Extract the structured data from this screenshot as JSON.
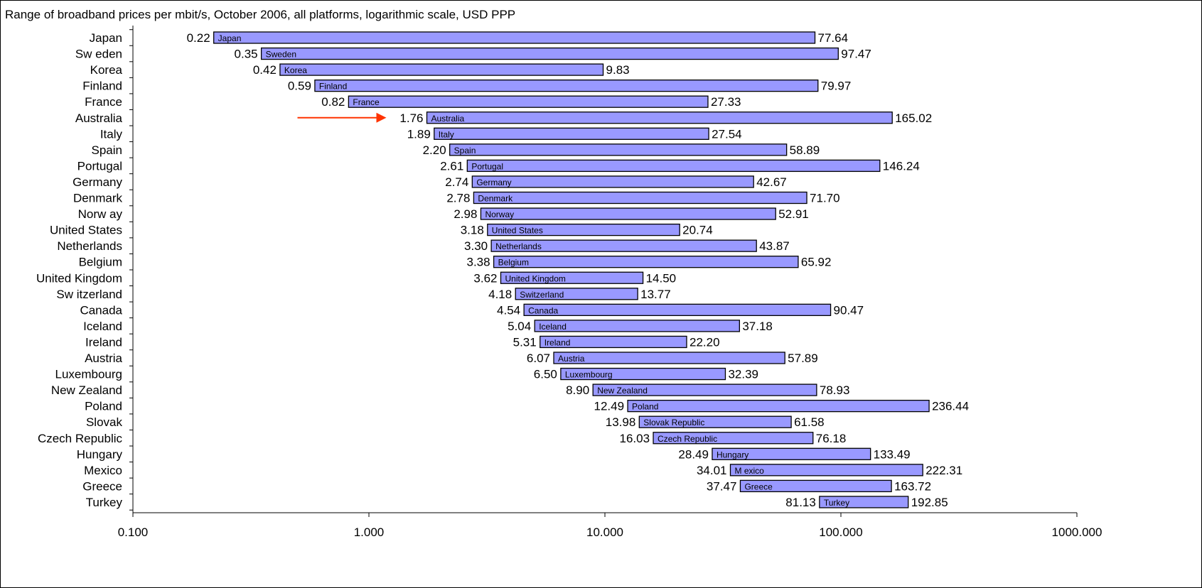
{
  "chart_data": {
    "type": "bar",
    "orientation": "horizontal-range",
    "title": "Range of broadband prices per mbit/s, October 2006, all platforms, logarithmic scale, USD PPP",
    "xscale": "log",
    "xlim": [
      0.1,
      1000
    ],
    "x_ticks": [
      "0.100",
      "1.000",
      "10.000",
      "100.000",
      "1000.000"
    ],
    "categories": [
      "Japan",
      "Sw eden",
      "Korea",
      "Finland",
      "France",
      "Australia",
      "Italy",
      "Spain",
      "Portugal",
      "Germany",
      "Denmark",
      "Norw ay",
      "United States",
      "Netherlands",
      "Belgium",
      "United Kingdom",
      "Sw itzerland",
      "Canada",
      "Iceland",
      "Ireland",
      "Austria",
      "Luxembourg",
      "New Zealand",
      "Poland",
      "Slovak",
      "Czech Republic",
      "Hungary",
      "Mexico",
      "Greece",
      "Turkey"
    ],
    "bar_labels": [
      "Japan",
      "Sweden",
      "Korea",
      "Finland",
      "France",
      "Australia",
      "Italy",
      "Spain",
      "Portugal",
      "Germany",
      "Denmark",
      "Norway",
      "United States",
      "Netherlands",
      "Belgium",
      "United Kingdom",
      "Switzerland",
      "Canada",
      "Iceland",
      "Ireland",
      "Austria",
      "Luxembourg",
      "New Zealand",
      "Poland",
      "Slovak Republic",
      "Czech Republic",
      "Hungary",
      "M exico",
      "Greece",
      "Turkey"
    ],
    "min_labels": [
      "0.22",
      "0.35",
      "0.42",
      "0.59",
      "0.82",
      "1.76",
      "1.89",
      "2.20",
      "2.61",
      "2.74",
      "2.78",
      "2.98",
      "3.18",
      "3.30",
      "3.38",
      "3.62",
      "4.18",
      "4.54",
      "5.04",
      "5.31",
      "6.07",
      "6.50",
      "8.90",
      "12.49",
      "13.98",
      "16.03",
      "28.49",
      "34.01",
      "37.47",
      "81.13"
    ],
    "max_labels": [
      "77.64",
      "97.47",
      "9.83",
      "79.97",
      "27.33",
      "165.02",
      "27.54",
      "58.89",
      "146.24",
      "42.67",
      "71.70",
      "52.91",
      "20.74",
      "43.87",
      "65.92",
      "14.50",
      "13.77",
      "90.47",
      "37.18",
      "22.20",
      "57.89",
      "32.39",
      "78.93",
      "236.44",
      "61.58",
      "76.18",
      "133.49",
      "222.31",
      "163.72",
      "192.85"
    ],
    "min_values": [
      0.22,
      0.35,
      0.42,
      0.59,
      0.82,
      1.76,
      1.89,
      2.2,
      2.61,
      2.74,
      2.78,
      2.98,
      3.18,
      3.3,
      3.38,
      3.62,
      4.18,
      4.54,
      5.04,
      5.31,
      6.07,
      6.5,
      8.9,
      12.49,
      13.98,
      16.03,
      28.49,
      34.01,
      37.47,
      81.13
    ],
    "max_values": [
      77.64,
      97.47,
      9.83,
      79.97,
      27.33,
      165.02,
      27.54,
      58.89,
      146.24,
      42.67,
      71.7,
      52.91,
      20.74,
      43.87,
      65.92,
      14.5,
      13.77,
      90.47,
      37.18,
      22.2,
      57.89,
      32.39,
      78.93,
      236.44,
      61.58,
      76.18,
      133.49,
      222.31,
      163.72,
      192.85
    ],
    "highlight_category": "Australia",
    "grid": false,
    "legend": "none",
    "colors": {
      "bar_fill": "#9999ff",
      "bar_stroke": "#000000",
      "arrow": "#ff3300"
    }
  }
}
